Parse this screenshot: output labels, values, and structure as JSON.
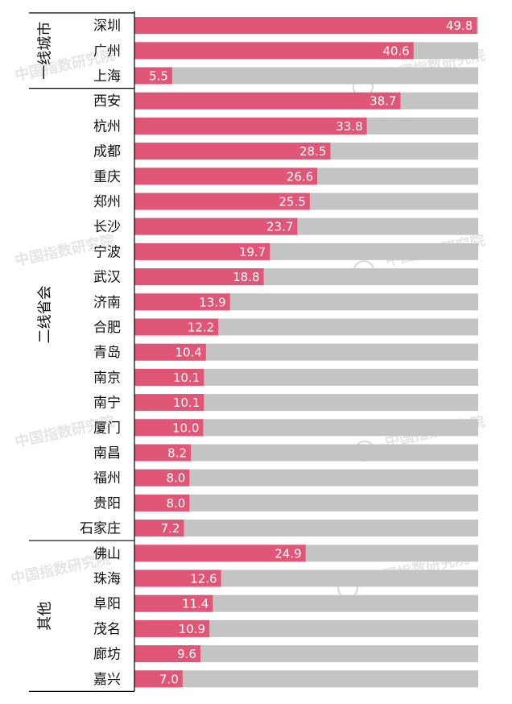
{
  "chart_data": {
    "type": "bar",
    "orientation": "horizontal",
    "colors": {
      "bar": "#e05677",
      "track": "#c4c4c4",
      "label": "#ffffff",
      "text": "#111111"
    },
    "xlim": [
      0,
      50
    ],
    "groups": [
      {
        "name": "一线城市",
        "categories": [
          "深圳",
          "广州",
          "上海"
        ],
        "values": [
          49.8,
          40.6,
          5.5
        ]
      },
      {
        "name": "二线省会",
        "categories": [
          "西安",
          "杭州",
          "成都",
          "重庆",
          "郑州",
          "长沙",
          "宁波",
          "武汉",
          "济南",
          "合肥",
          "青岛",
          "南京",
          "南宁",
          "厦门",
          "南昌",
          "福州",
          "贵阳",
          "石家庄"
        ],
        "values": [
          38.7,
          33.8,
          28.5,
          26.6,
          25.5,
          23.7,
          19.7,
          18.8,
          13.9,
          12.2,
          10.4,
          10.1,
          10.1,
          10.0,
          8.2,
          8.0,
          8.0,
          7.2
        ]
      },
      {
        "name": "其他",
        "categories": [
          "佛山",
          "珠海",
          "阜阳",
          "茂名",
          "廊坊",
          "嘉兴"
        ],
        "values": [
          24.9,
          12.6,
          11.4,
          10.9,
          9.6,
          7.0
        ]
      }
    ],
    "watermark": "中国指数研究院"
  }
}
